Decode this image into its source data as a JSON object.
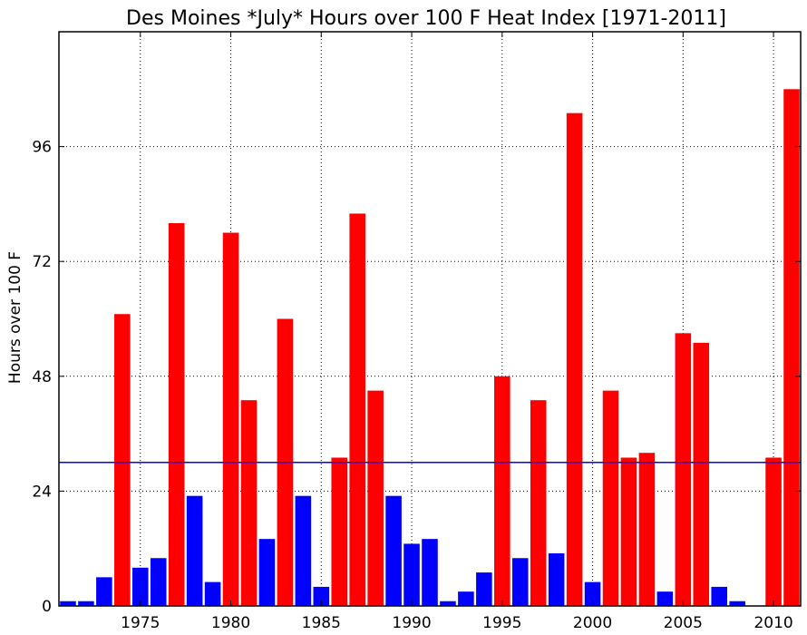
{
  "chart_data": {
    "type": "bar",
    "title": "Des Moines *July* Hours over 100 F Heat Index [1971-2011]",
    "xlabel": "",
    "ylabel": "Hours over 100 F",
    "x": [
      1971,
      1972,
      1973,
      1974,
      1975,
      1976,
      1977,
      1978,
      1979,
      1980,
      1981,
      1982,
      1983,
      1984,
      1985,
      1986,
      1987,
      1988,
      1989,
      1990,
      1991,
      1992,
      1993,
      1994,
      1995,
      1996,
      1997,
      1998,
      1999,
      2000,
      2001,
      2002,
      2003,
      2004,
      2005,
      2006,
      2007,
      2008,
      2009,
      2010,
      2011
    ],
    "values": [
      1,
      1,
      6,
      61,
      8,
      10,
      80,
      23,
      5,
      78,
      43,
      14,
      60,
      23,
      4,
      31,
      82,
      45,
      23,
      13,
      14,
      1,
      3,
      7,
      48,
      10,
      43,
      11,
      103,
      5,
      45,
      31,
      32,
      3,
      57,
      55,
      4,
      1,
      0,
      31,
      108
    ],
    "average": 30,
    "ylim": [
      0,
      120
    ],
    "xlim": [
      1970.5,
      2011.5
    ],
    "yticks": [
      0,
      24,
      48,
      72,
      96
    ],
    "xticks": [
      1975,
      1980,
      1985,
      1990,
      1995,
      2000,
      2005,
      2010
    ],
    "grid": true,
    "colors": {
      "above_average": "#ff0000",
      "below_average": "#0000ff",
      "average_line": "#0000ff"
    }
  }
}
